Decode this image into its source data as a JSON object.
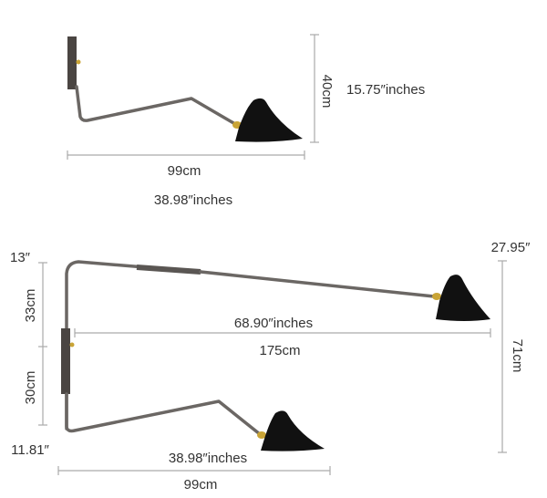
{
  "single_arm": {
    "height_cm": "40cm",
    "height_in": "15.75″inches",
    "width_cm": "99cm",
    "width_in": "38.98″inches"
  },
  "double_arm": {
    "top_offset_in": "13″",
    "top_right_in": "27.95″",
    "upper_height_cm": "33cm",
    "upper_width_in": "68.90″inches",
    "upper_width_cm": "175cm",
    "total_height_cm": "71cm",
    "lower_height_cm": "30cm",
    "bottom_offset_in": "11.81″",
    "lower_width_in": "38.98″inches",
    "lower_width_cm": "99cm"
  }
}
